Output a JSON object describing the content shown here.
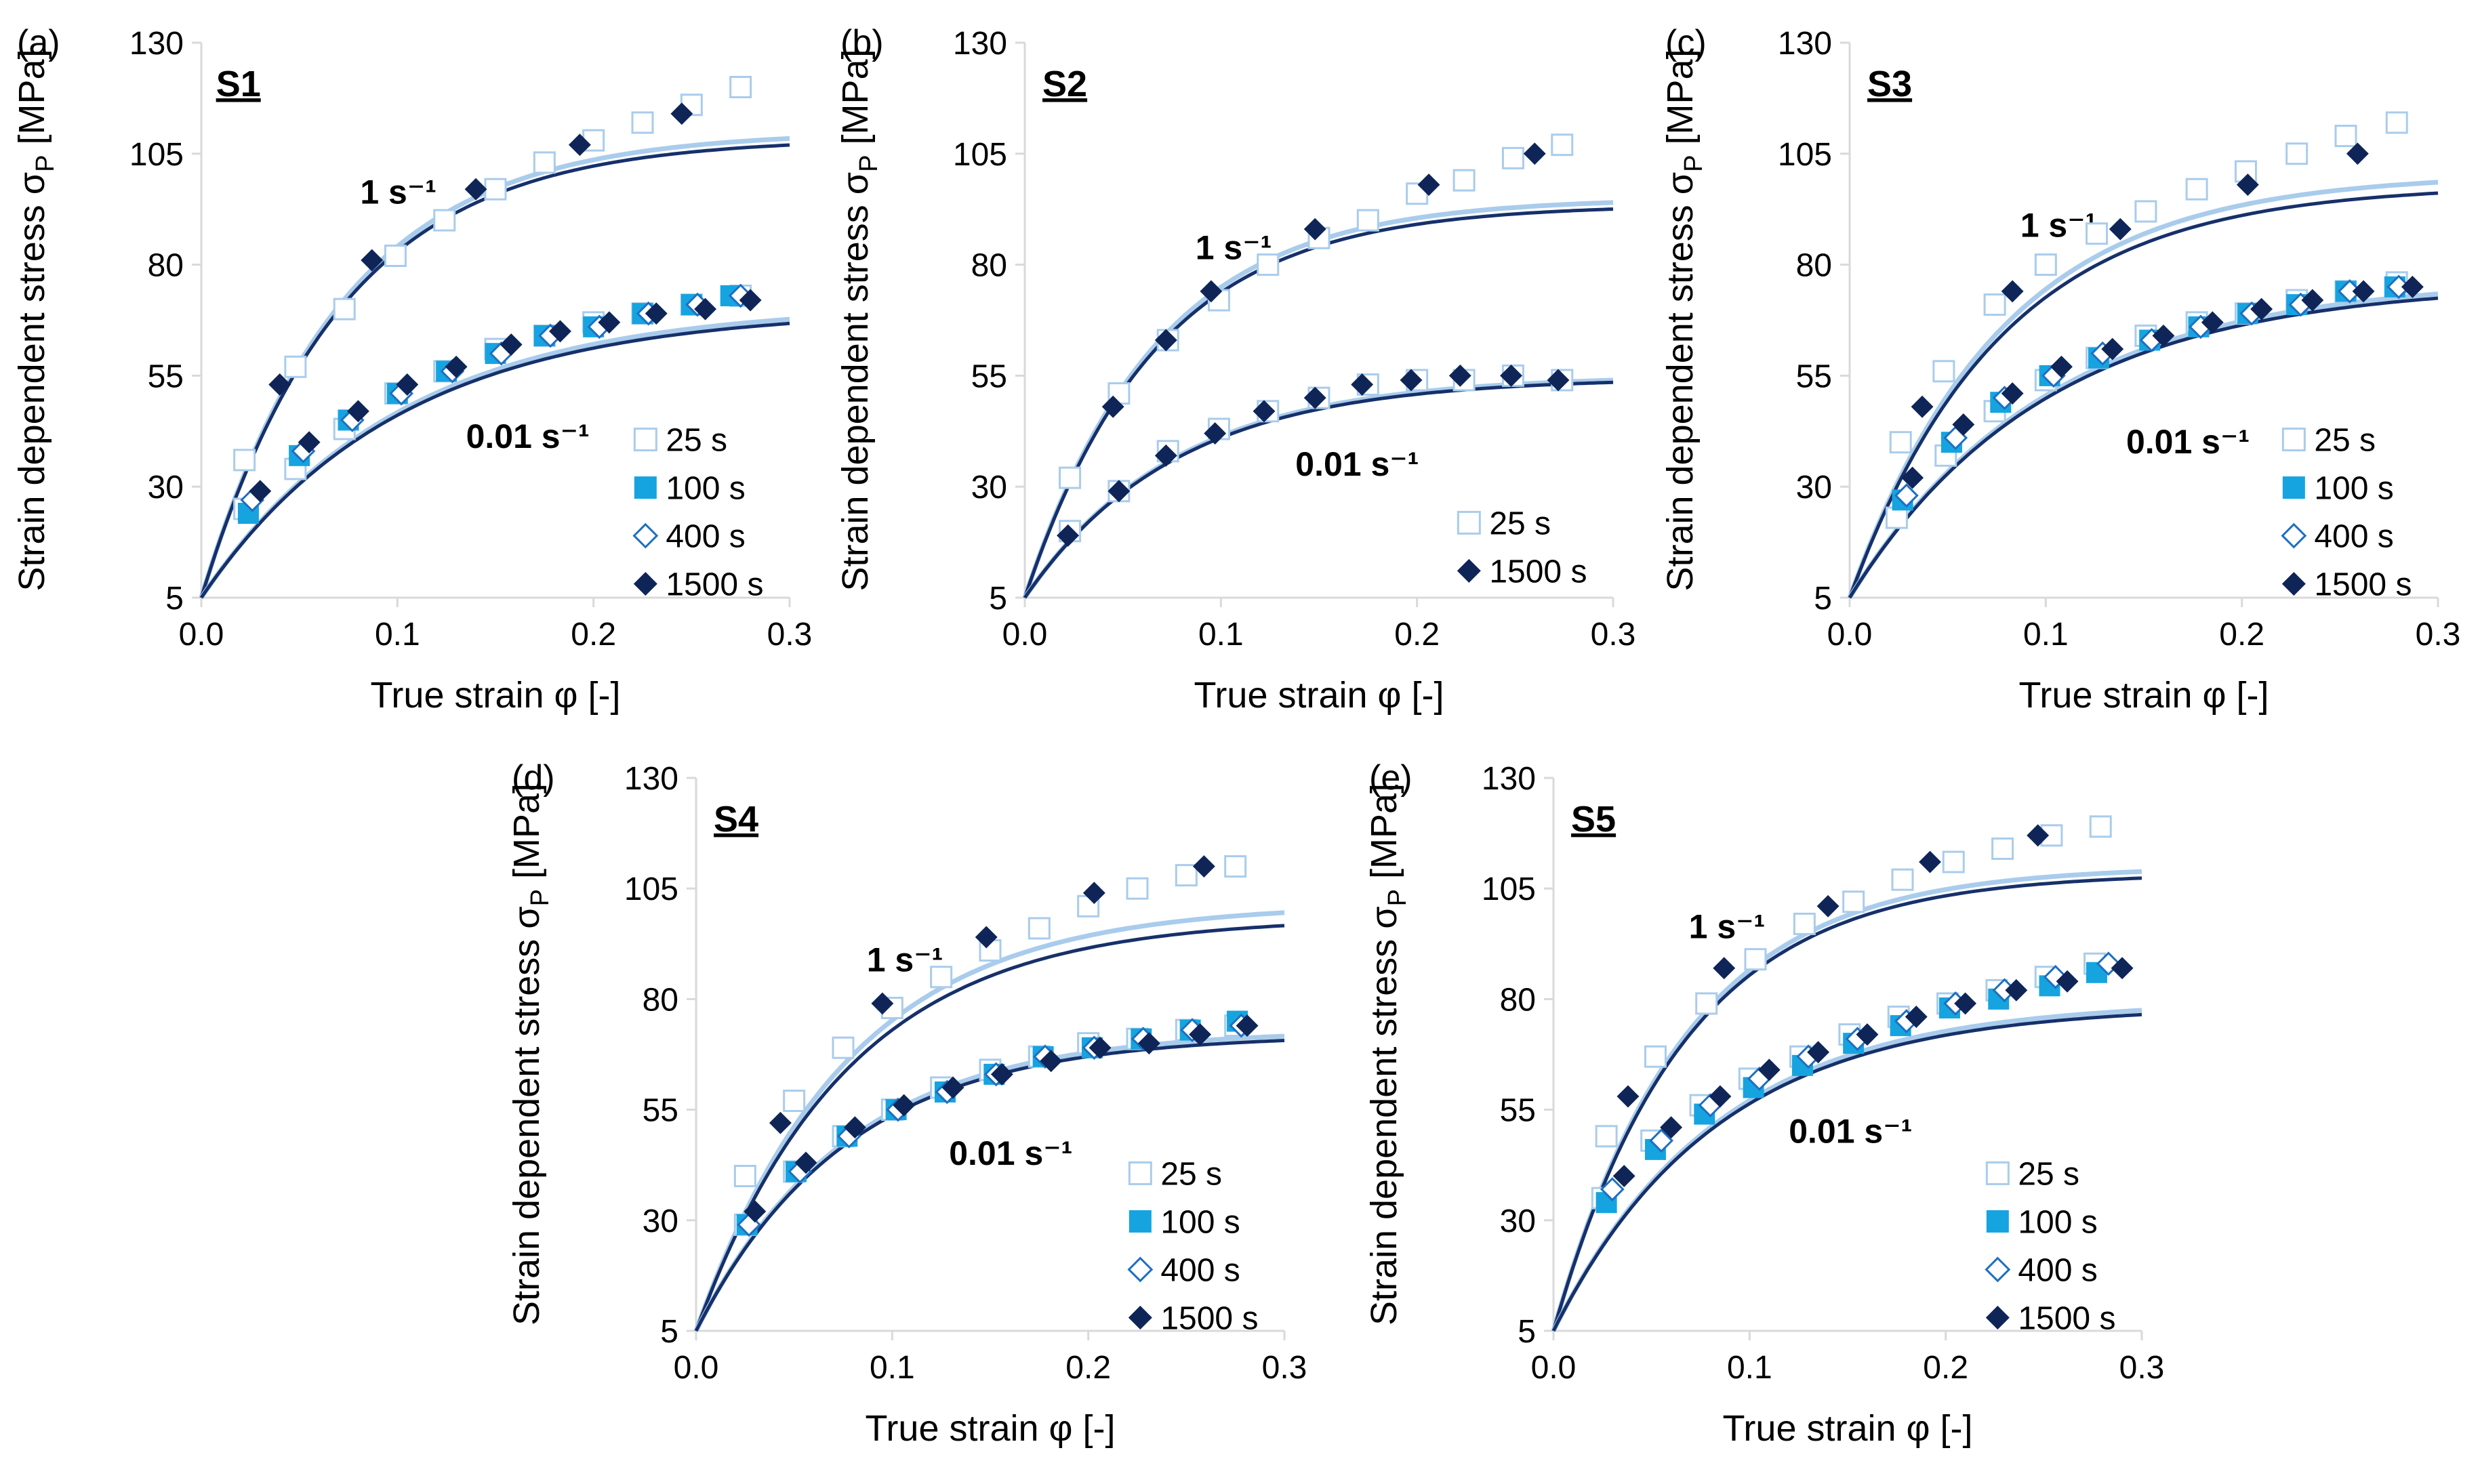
{
  "figure": {
    "y_label_main": "Strain dependent stress σ",
    "y_label_sub": "P",
    "y_label_unit": " [MPa]",
    "x_label": "True strain φ [-]",
    "rate_labels": [
      "1 s⁻¹",
      "0.01 s⁻¹"
    ]
  },
  "legend_items": [
    {
      "key": "25s",
      "label": "25 s",
      "marker": "square-open",
      "color": "#A9CCEC"
    },
    {
      "key": "100s",
      "label": "100 s",
      "marker": "square-filled",
      "color": "#15A4E0"
    },
    {
      "key": "400s",
      "label": "400 s",
      "marker": "diamond-open",
      "color": "#1E6FC1"
    },
    {
      "key": "1500s",
      "label": "1500 s",
      "marker": "diamond-filled",
      "color": "#0F2558"
    }
  ],
  "colors": {
    "fit_dark": "#16306A",
    "fit_light": "#A9CCEC",
    "fit_mid": "#5E7A9E",
    "axis": "#D9D9D9",
    "tick": "#000000"
  },
  "chart_data": [
    {
      "type": "scatter",
      "panel": "(a)",
      "title": "S1",
      "xlim": [
        0,
        0.3
      ],
      "ylim": [
        5,
        130
      ],
      "xticks": [
        "0.0",
        "0.1",
        "0.2",
        "0.3"
      ],
      "yticks": [
        "5",
        "30",
        "55",
        "80",
        "105",
        "130"
      ],
      "legend": [
        "25s",
        "100s",
        "400s",
        "1500s"
      ],
      "fits": [
        {
          "rate": "1 s⁻¹",
          "dark_max": 108.5,
          "light_max": 110,
          "k": 14
        },
        {
          "rate": "0.01 s⁻¹",
          "dark_max": 70,
          "light_max": 71,
          "k": 10
        }
      ],
      "series": [
        {
          "name": "25s",
          "rate": "1 s⁻¹",
          "x": [
            0.022,
            0.048,
            0.073,
            0.099,
            0.124,
            0.15,
            0.175,
            0.2,
            0.225,
            0.25,
            0.275
          ],
          "y": [
            36,
            57,
            70,
            82,
            90,
            97,
            103,
            108,
            112,
            116,
            120
          ]
        },
        {
          "name": "1500s",
          "rate": "1 s⁻¹",
          "x": [
            0.04,
            0.087,
            0.14,
            0.193,
            0.245
          ],
          "y": [
            53,
            81,
            97,
            107,
            114
          ]
        },
        {
          "name": "25s",
          "rate": "0.01 s⁻¹",
          "x": [
            0.022,
            0.048,
            0.073,
            0.099,
            0.124,
            0.15,
            0.175,
            0.2,
            0.225,
            0.25,
            0.275
          ],
          "y": [
            25,
            34,
            43,
            51,
            56,
            61,
            64,
            67,
            69,
            71,
            73
          ]
        },
        {
          "name": "100s",
          "rate": "0.01 s⁻¹",
          "x": [
            0.024,
            0.05,
            0.075,
            0.1,
            0.125,
            0.15,
            0.175,
            0.2,
            0.225,
            0.25,
            0.27
          ],
          "y": [
            24,
            37,
            45,
            51,
            56,
            60,
            64,
            66,
            69,
            71,
            73
          ]
        },
        {
          "name": "400s",
          "rate": "0.01 s⁻¹",
          "x": [
            0.026,
            0.052,
            0.077,
            0.102,
            0.128,
            0.153,
            0.178,
            0.203,
            0.228,
            0.253,
            0.275
          ],
          "y": [
            27,
            38,
            45,
            51,
            56,
            60,
            64,
            66,
            69,
            71,
            73
          ]
        },
        {
          "name": "1500s",
          "rate": "0.01 s⁻¹",
          "x": [
            0.03,
            0.055,
            0.08,
            0.105,
            0.13,
            0.158,
            0.183,
            0.208,
            0.232,
            0.257,
            0.28
          ],
          "y": [
            29,
            40,
            47,
            53,
            57,
            62,
            65,
            67,
            69,
            70,
            72
          ]
        }
      ]
    },
    {
      "type": "scatter",
      "panel": "(b)",
      "title": "S2",
      "xlim": [
        0,
        0.3
      ],
      "ylim": [
        5,
        130
      ],
      "xticks": [
        "0.0",
        "0.1",
        "0.2",
        "0.3"
      ],
      "yticks": [
        "5",
        "30",
        "55",
        "80",
        "105",
        "130"
      ],
      "legend": [
        "25s",
        "1500s"
      ],
      "fits": [
        {
          "rate": "1 s⁻¹",
          "dark_max": 93.5,
          "light_max": 95,
          "k": 15
        },
        {
          "rate": "0.01 s⁻¹",
          "dark_max": 54.5,
          "light_max": 55,
          "k": 13
        }
      ],
      "series": [
        {
          "name": "25s",
          "rate": "1 s⁻¹",
          "x": [
            0.023,
            0.048,
            0.073,
            0.099,
            0.124,
            0.15,
            0.175,
            0.2,
            0.224,
            0.249,
            0.274
          ],
          "y": [
            32,
            51,
            63,
            72,
            80,
            86,
            90,
            96,
            99,
            104,
            107
          ]
        },
        {
          "name": "1500s",
          "rate": "1 s⁻¹",
          "x": [
            0.022,
            0.045,
            0.072,
            0.095,
            0.148,
            0.206,
            0.26
          ],
          "y": [
            19,
            48,
            63,
            74,
            88,
            98,
            105
          ]
        },
        {
          "name": "25s",
          "rate": "0.01 s⁻¹",
          "x": [
            0.023,
            0.048,
            0.073,
            0.099,
            0.124,
            0.15,
            0.175,
            0.2,
            0.224,
            0.249,
            0.274
          ],
          "y": [
            20,
            29,
            38,
            43,
            47,
            50,
            53,
            54,
            54,
            55,
            54
          ]
        },
        {
          "name": "1500s",
          "rate": "0.01 s⁻¹",
          "x": [
            0.022,
            0.048,
            0.072,
            0.097,
            0.122,
            0.148,
            0.172,
            0.197,
            0.222,
            0.248,
            0.272
          ],
          "y": [
            19,
            29,
            37,
            42,
            47,
            50,
            53,
            54,
            55,
            55,
            54
          ]
        }
      ]
    },
    {
      "type": "scatter",
      "panel": "(c)",
      "title": "S3",
      "xlim": [
        0,
        0.3
      ],
      "ylim": [
        5,
        130
      ],
      "xticks": [
        "0.0",
        "0.1",
        "0.2",
        "0.3"
      ],
      "yticks": [
        "5",
        "30",
        "55",
        "80",
        "105",
        "130"
      ],
      "legend": [
        "25s",
        "100s",
        "400s",
        "1500s"
      ],
      "fits": [
        {
          "rate": "1 s⁻¹",
          "dark_max": 98,
          "light_max": 100.5,
          "k": 13
        },
        {
          "rate": "0.01 s⁻¹",
          "dark_max": 76,
          "light_max": 77,
          "k": 10
        }
      ],
      "series": [
        {
          "name": "25s",
          "rate": "1 s⁻¹",
          "x": [
            0.026,
            0.048,
            0.074,
            0.1,
            0.126,
            0.151,
            0.177,
            0.202,
            0.228,
            0.253,
            0.279
          ],
          "y": [
            40,
            56,
            71,
            80,
            87,
            92,
            97,
            101,
            105,
            109,
            112
          ]
        },
        {
          "name": "1500s",
          "rate": "1 s⁻¹",
          "x": [
            0.037,
            0.083,
            0.138,
            0.203,
            0.259
          ],
          "y": [
            48,
            74,
            88,
            98,
            105
          ]
        },
        {
          "name": "25s",
          "rate": "0.01 s⁻¹",
          "x": [
            0.024,
            0.049,
            0.074,
            0.1,
            0.126,
            0.151,
            0.177,
            0.202,
            0.228,
            0.253,
            0.279
          ],
          "y": [
            23,
            37,
            47,
            54,
            59,
            64,
            67,
            69,
            72,
            74,
            76
          ]
        },
        {
          "name": "100s",
          "rate": "0.01 s⁻¹",
          "x": [
            0.027,
            0.052,
            0.077,
            0.102,
            0.127,
            0.153,
            0.178,
            0.203,
            0.228,
            0.253,
            0.278
          ],
          "y": [
            27,
            40,
            49,
            55,
            59,
            63,
            66,
            69,
            71,
            74,
            75
          ]
        },
        {
          "name": "400s",
          "rate": "0.01 s⁻¹",
          "x": [
            0.029,
            0.054,
            0.079,
            0.104,
            0.129,
            0.154,
            0.179,
            0.205,
            0.23,
            0.255,
            0.28
          ],
          "y": [
            28,
            41,
            50,
            55,
            60,
            63,
            66,
            69,
            71,
            74,
            75
          ]
        },
        {
          "name": "1500s",
          "rate": "0.01 s⁻¹",
          "x": [
            0.032,
            0.058,
            0.083,
            0.108,
            0.134,
            0.16,
            0.185,
            0.21,
            0.236,
            0.262,
            0.287
          ],
          "y": [
            32,
            44,
            51,
            57,
            61,
            64,
            67,
            70,
            72,
            74,
            75
          ]
        }
      ]
    },
    {
      "type": "scatter",
      "panel": "(d)",
      "title": "S4",
      "xlim": [
        0,
        0.3
      ],
      "ylim": [
        5,
        130
      ],
      "xticks": [
        "0.0",
        "0.1",
        "0.2",
        "0.3"
      ],
      "yticks": [
        "5",
        "30",
        "55",
        "80",
        "105",
        "130"
      ],
      "legend": [
        "25s",
        "100s",
        "400s",
        "1500s"
      ],
      "fits": [
        {
          "rate": "1 s⁻¹",
          "dark_max": 98.5,
          "light_max": 101.5,
          "k": 13
        },
        {
          "rate": "0.01 s⁻¹",
          "dark_max": 72,
          "light_max": 73,
          "k": 13
        }
      ],
      "series": [
        {
          "name": "25s",
          "rate": "1 s⁻¹",
          "x": [
            0.025,
            0.05,
            0.075,
            0.1,
            0.125,
            0.15,
            0.175,
            0.2,
            0.225,
            0.25,
            0.275
          ],
          "y": [
            40,
            57,
            69,
            78,
            85,
            91,
            96,
            101,
            105,
            108,
            110
          ]
        },
        {
          "name": "1500s",
          "rate": "1 s⁻¹",
          "x": [
            0.043,
            0.095,
            0.148,
            0.203,
            0.259
          ],
          "y": [
            52,
            79,
            94,
            104,
            110
          ]
        },
        {
          "name": "25s",
          "rate": "0.01 s⁻¹",
          "x": [
            0.025,
            0.05,
            0.075,
            0.1,
            0.125,
            0.15,
            0.175,
            0.2,
            0.225,
            0.25,
            0.275
          ],
          "y": [
            29,
            41,
            49,
            55,
            60,
            64,
            67,
            70,
            71,
            73,
            74
          ]
        },
        {
          "name": "100s",
          "rate": "0.01 s⁻¹",
          "x": [
            0.026,
            0.051,
            0.077,
            0.102,
            0.127,
            0.152,
            0.177,
            0.202,
            0.227,
            0.252,
            0.276
          ],
          "y": [
            29,
            41,
            49,
            55,
            59,
            63,
            67,
            69,
            71,
            73,
            75
          ]
        },
        {
          "name": "400s",
          "rate": "0.01 s⁻¹",
          "x": [
            0.027,
            0.053,
            0.078,
            0.103,
            0.128,
            0.153,
            0.178,
            0.203,
            0.228,
            0.253,
            0.278
          ],
          "y": [
            29,
            41,
            49,
            55,
            59,
            63,
            67,
            69,
            71,
            73,
            74
          ]
        },
        {
          "name": "1500s",
          "rate": "0.01 s⁻¹",
          "x": [
            0.03,
            0.056,
            0.081,
            0.106,
            0.131,
            0.156,
            0.181,
            0.206,
            0.231,
            0.257,
            0.281
          ],
          "y": [
            32,
            43,
            51,
            56,
            60,
            63,
            66,
            69,
            70,
            72,
            74
          ]
        }
      ]
    },
    {
      "type": "scatter",
      "panel": "(e)",
      "title": "S5",
      "xlim": [
        0,
        0.3
      ],
      "ylim": [
        5,
        130
      ],
      "xticks": [
        "0.0",
        "0.1",
        "0.2",
        "0.3"
      ],
      "yticks": [
        "5",
        "30",
        "55",
        "80",
        "105",
        "130"
      ],
      "legend": [
        "25s",
        "100s",
        "400s",
        "1500s"
      ],
      "fits": [
        {
          "rate": "1 s⁻¹",
          "dark_max": 108.5,
          "light_max": 110,
          "k": 15
        },
        {
          "rate": "0.01 s⁻¹",
          "dark_max": 78.5,
          "light_max": 79.5,
          "k": 12
        }
      ],
      "series": [
        {
          "name": "25s",
          "rate": "1 s⁻¹",
          "x": [
            0.027,
            0.052,
            0.078,
            0.103,
            0.128,
            0.153,
            0.178,
            0.204,
            0.229,
            0.254,
            0.279
          ],
          "y": [
            49,
            67,
            79,
            89,
            97,
            102,
            107,
            111,
            114,
            117,
            119
          ]
        },
        {
          "name": "1500s",
          "rate": "1 s⁻¹",
          "x": [
            0.038,
            0.087,
            0.14,
            0.192,
            0.247
          ],
          "y": [
            58,
            87,
            101,
            111,
            117
          ]
        },
        {
          "name": "25s",
          "rate": "0.01 s⁻¹",
          "x": [
            0.025,
            0.05,
            0.075,
            0.1,
            0.126,
            0.151,
            0.176,
            0.201,
            0.226,
            0.251,
            0.276
          ],
          "y": [
            35,
            48,
            56,
            62,
            67,
            72,
            76,
            79,
            82,
            85,
            88
          ]
        },
        {
          "name": "100s",
          "rate": "0.01 s⁻¹",
          "x": [
            0.027,
            0.052,
            0.077,
            0.102,
            0.127,
            0.153,
            0.177,
            0.202,
            0.227,
            0.253,
            0.277
          ],
          "y": [
            34,
            46,
            54,
            60,
            65,
            70,
            74,
            78,
            80,
            83,
            86
          ]
        },
        {
          "name": "400s",
          "rate": "0.01 s⁻¹",
          "x": [
            0.03,
            0.055,
            0.08,
            0.105,
            0.13,
            0.155,
            0.18,
            0.205,
            0.23,
            0.256,
            0.283
          ],
          "y": [
            37,
            48,
            56,
            62,
            67,
            71,
            75,
            79,
            82,
            85,
            88
          ]
        },
        {
          "name": "1500s",
          "rate": "0.01 s⁻¹",
          "x": [
            0.036,
            0.06,
            0.085,
            0.11,
            0.135,
            0.16,
            0.185,
            0.21,
            0.236,
            0.262,
            0.29
          ],
          "y": [
            40,
            51,
            58,
            64,
            68,
            72,
            76,
            79,
            82,
            84,
            87
          ]
        }
      ]
    }
  ]
}
